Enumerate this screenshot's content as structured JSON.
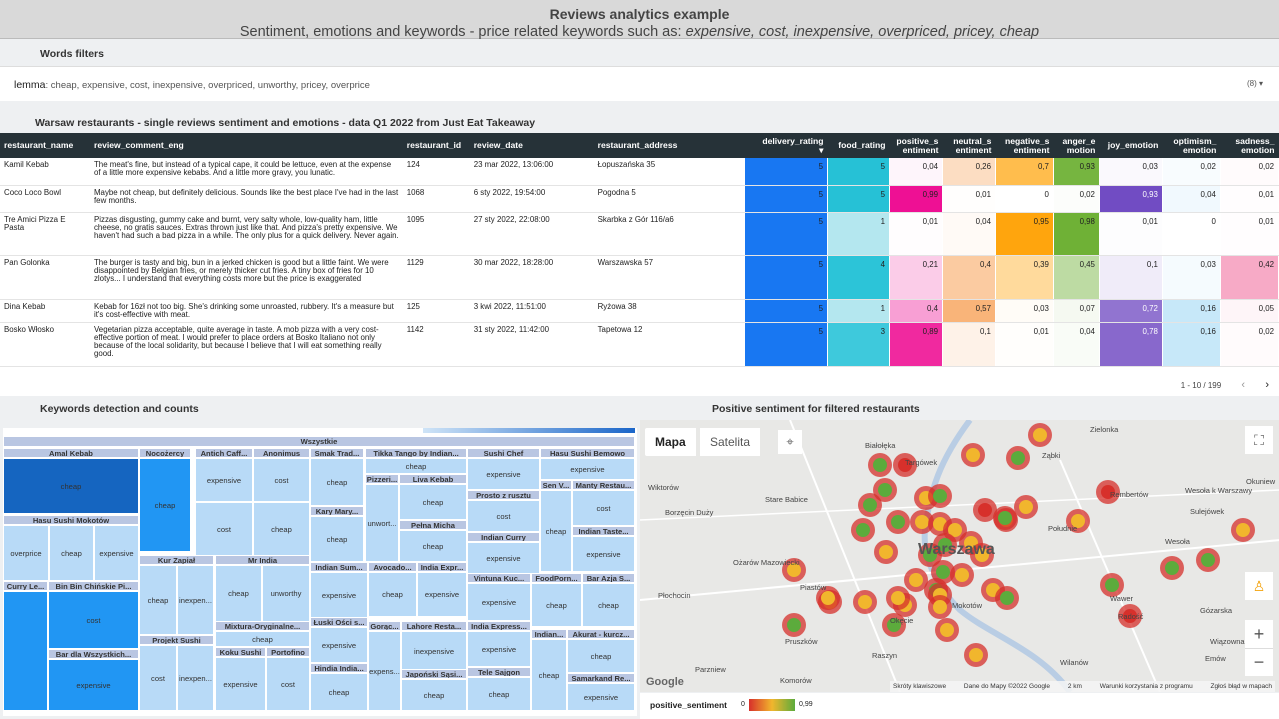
{
  "header": {
    "title": "Reviews analytics example",
    "subtitle_prefix": "Sentiment, emotions and keywords - price related keywords such as:",
    "subtitle_keywords": "expensive, cost, inexpensive, overpriced, pricey, cheap"
  },
  "filters": {
    "title": "Words filters",
    "lemma_label": "lemma",
    "lemma_value": ": cheap, expensive, cost, inexpensive, overpriced, unworthy, pricey, overprice",
    "control": "(8) ▾"
  },
  "table": {
    "title": "Warsaw restaurants - single reviews sentiment and emotions - data Q1 2022 from Just Eat Takeaway",
    "columns": [
      "restaurant_name",
      "review_comment_eng",
      "restaurant_id",
      "review_date",
      "restaurant_address",
      "delivery_rating",
      "food_rating",
      "positive_s entiment",
      "neutral_s entiment",
      "negative_s entiment",
      "anger_e motion",
      "joy_emotion",
      "optimism_ emotion",
      "sadness_ emotion"
    ],
    "rows": [
      [
        "Kamil Kebab",
        "The meat's fine, but instead of a typical cape, it could be lettuce, even at the expense of a little more expensive kebabs. And a little more gravy, you lunatic.",
        "124",
        "23 mar 2022, 13:06:00",
        "Łopuszańska 35",
        "5",
        "5",
        "0,04",
        "0,26",
        "0,7",
        "0,93",
        "0,03",
        "0,02",
        "0,02"
      ],
      [
        "Coco Loco Bowl",
        "Maybe not cheap, but definitely delicious. Sounds like the best place I've had in the last few months.",
        "1068",
        "6 sty 2022, 19:54:00",
        "Pogodna 5",
        "5",
        "5",
        "0,99",
        "0,01",
        "0",
        "0,02",
        "0,93",
        "0,04",
        "0,01"
      ],
      [
        "Tre Amici Pizza E Pasta",
        "Pizzas disgusting, gummy cake and burnt, very salty whole, low-quality ham, little cheese, no gratis sauces. Extras thrown just like that. And pizza's pretty expensive. We haven't had such a bad pizza in a while. The only plus for a quick delivery. Never again.",
        "1095",
        "27 sty 2022, 22:08:00",
        "Skarbka z Gór 116/a6",
        "5",
        "1",
        "0,01",
        "0,04",
        "0,95",
        "0,98",
        "0,01",
        "0",
        "0,01"
      ],
      [
        "Pan Golonka",
        "The burger is tasty and big, bun in a jerked chicken is good but a little faint. We were disappointed by Belgian fries, or merely thicker cut fries. A tiny box of fries for 10 zlotys... I understand that everything costs more but the price is exaggerated",
        "1129",
        "30 mar 2022, 18:28:00",
        "Warszawska 57",
        "5",
        "4",
        "0,21",
        "0,4",
        "0,39",
        "0,45",
        "0,1",
        "0,03",
        "0,42"
      ],
      [
        "Dina Kebab",
        "Kebab for 16zł not too big. She's drinking some unroasted, rubbery. It's a measure but it's cost-effective with meat.",
        "125",
        "3 kwi 2022, 11:51:00",
        "Ryżowa 38",
        "5",
        "1",
        "0,4",
        "0,57",
        "0,03",
        "0,07",
        "0,72",
        "0,16",
        "0,05"
      ],
      [
        "Bosko Włosko",
        "Vegetarian pizza acceptable, quite average in taste. A mob pizza with a very cost-effective portion of meat. I would prefer to place orders at Bosko Italiano not only because of the local solidarity, but because I believe that I will eat something really good.",
        "1142",
        "31 sty 2022, 11:42:00",
        "Tapetowa 12",
        "5",
        "3",
        "0,89",
        "0,1",
        "0,01",
        "0,04",
        "0,78",
        "0,16",
        "0,02"
      ]
    ],
    "pager": "1 - 10 / 199",
    "prev": "‹",
    "next": "›"
  },
  "treemap": {
    "title": "Keywords detection and counts",
    "root": "Wszystkie",
    "groups": [
      {
        "name": "Amal Kebab",
        "cells": [
          "cheap"
        ]
      },
      {
        "name": "Hasu Sushi Mokotów",
        "cells": [
          "overprice",
          "cheap",
          "expensive"
        ]
      },
      {
        "name": "Curry Le...",
        "cells": []
      },
      {
        "name": "Bin Bin Chińskie Pi...",
        "cells": [
          "cost"
        ]
      },
      {
        "name": "Bar dla Wszystkich...",
        "cells": [
          "expensive"
        ]
      },
      {
        "name": "Nocożercy",
        "cells": [
          "cheap"
        ]
      },
      {
        "name": "Kur Zapiał",
        "cells": [
          "cheap",
          "inexpen..."
        ]
      },
      {
        "name": "Projekt Sushi",
        "cells": [
          "cost",
          "inexpen..."
        ]
      },
      {
        "name": "Antich Caff...",
        "cells": [
          "expensive",
          "cost"
        ]
      },
      {
        "name": "Anonimus",
        "cells": [
          "cost",
          "cheap"
        ]
      },
      {
        "name": "Mr India",
        "cells": [
          "cheap",
          "unworthy"
        ]
      },
      {
        "name": "Mixtura-Oryginalne...",
        "cells": [
          "cheap"
        ]
      },
      {
        "name": "Koku Sushi",
        "cells": [
          "expensive"
        ]
      },
      {
        "name": "Portofino",
        "cells": [
          "cost"
        ]
      },
      {
        "name": "Smak Trad...",
        "cells": [
          "cheap"
        ]
      },
      {
        "name": "Kary Mary...",
        "cells": [
          "cheap"
        ]
      },
      {
        "name": "Indian Sum...",
        "cells": [
          "expensive"
        ]
      },
      {
        "name": "Łuski Ości s...",
        "cells": [
          "expensive"
        ]
      },
      {
        "name": "Hindia India...",
        "cells": [
          "cheap"
        ]
      },
      {
        "name": "Tikka Tango by Indian...",
        "cells": [
          "cheap"
        ]
      },
      {
        "name": "Pizzeri...",
        "cells": [
          "unwort..."
        ]
      },
      {
        "name": "Liva Kebab",
        "cells": [
          "cheap"
        ]
      },
      {
        "name": "Pełna Micha",
        "cells": [
          "cheap"
        ]
      },
      {
        "name": "Avocado...",
        "cells": [
          "cheap"
        ]
      },
      {
        "name": "India Expr...",
        "cells": [
          "expensive"
        ]
      },
      {
        "name": "Gorąc...",
        "cells": [
          "expens..."
        ]
      },
      {
        "name": "Lahore Resta...",
        "cells": [
          "inexpensive"
        ]
      },
      {
        "name": "Japoński Sąsi...",
        "cells": [
          "cheap"
        ]
      },
      {
        "name": "Sushi Chef",
        "cells": [
          "expensive"
        ]
      },
      {
        "name": "Prosto z rusztu",
        "cells": [
          "cost"
        ]
      },
      {
        "name": "Indian Curry",
        "cells": [
          "expensive"
        ]
      },
      {
        "name": "Vintuna Kuc...",
        "cells": [
          "expensive"
        ]
      },
      {
        "name": "India Express...",
        "cells": [
          "expensive"
        ]
      },
      {
        "name": "Tele Sajgon",
        "cells": [
          "cheap"
        ]
      },
      {
        "name": "Hasu Sushi Bemowo",
        "cells": [
          "expensive"
        ]
      },
      {
        "name": "Sen V...",
        "cells": [
          "cheap"
        ]
      },
      {
        "name": "Manty Restau...",
        "cells": [
          "cost"
        ]
      },
      {
        "name": "Indian Taste...",
        "cells": [
          "expensive"
        ]
      },
      {
        "name": "FoodPorn...",
        "cells": [
          "cheap"
        ]
      },
      {
        "name": "Bar Azja S...",
        "cells": [
          "cheap"
        ]
      },
      {
        "name": "Indian...",
        "cells": [
          "cheap"
        ]
      },
      {
        "name": "Akurat - kurcz...",
        "cells": [
          "cheap"
        ]
      },
      {
        "name": "Samarkand Re...",
        "cells": [
          "expensive"
        ]
      }
    ]
  },
  "map": {
    "title": "Positive sentiment for filtered restaurants",
    "tab_map": "Mapa",
    "tab_sat": "Satelita",
    "city": "Warszawa",
    "places": [
      "Zielonka",
      "Białołęka",
      "Targówek",
      "Ząbki",
      "Wiktorów",
      "Stare Babice",
      "Rembertów",
      "Wesoła k Warszawy",
      "Okuniew",
      "Sulejówek",
      "Borzęcin Duży",
      "Południe",
      "Wesoła",
      "Ożarów Mazowiecki",
      "Piastów",
      "Płochocin",
      "Mokotów",
      "Wawer",
      "Radość",
      "Pruszków",
      "Gózarska",
      "Okęcie",
      "Wiązowna",
      "Raszyn",
      "Parzniew",
      "Komorów",
      "Wilanów",
      "Emów"
    ],
    "footer": [
      "Skróty klawiszowe",
      "Dane do Mapy ©2022 Google",
      "2 km",
      "Warunki korzystania z programu",
      "Zgłoś błąd w mapach"
    ],
    "google": "Google",
    "legend_label": "positive_sentiment",
    "legend_min": "0",
    "legend_max": "0,99"
  }
}
